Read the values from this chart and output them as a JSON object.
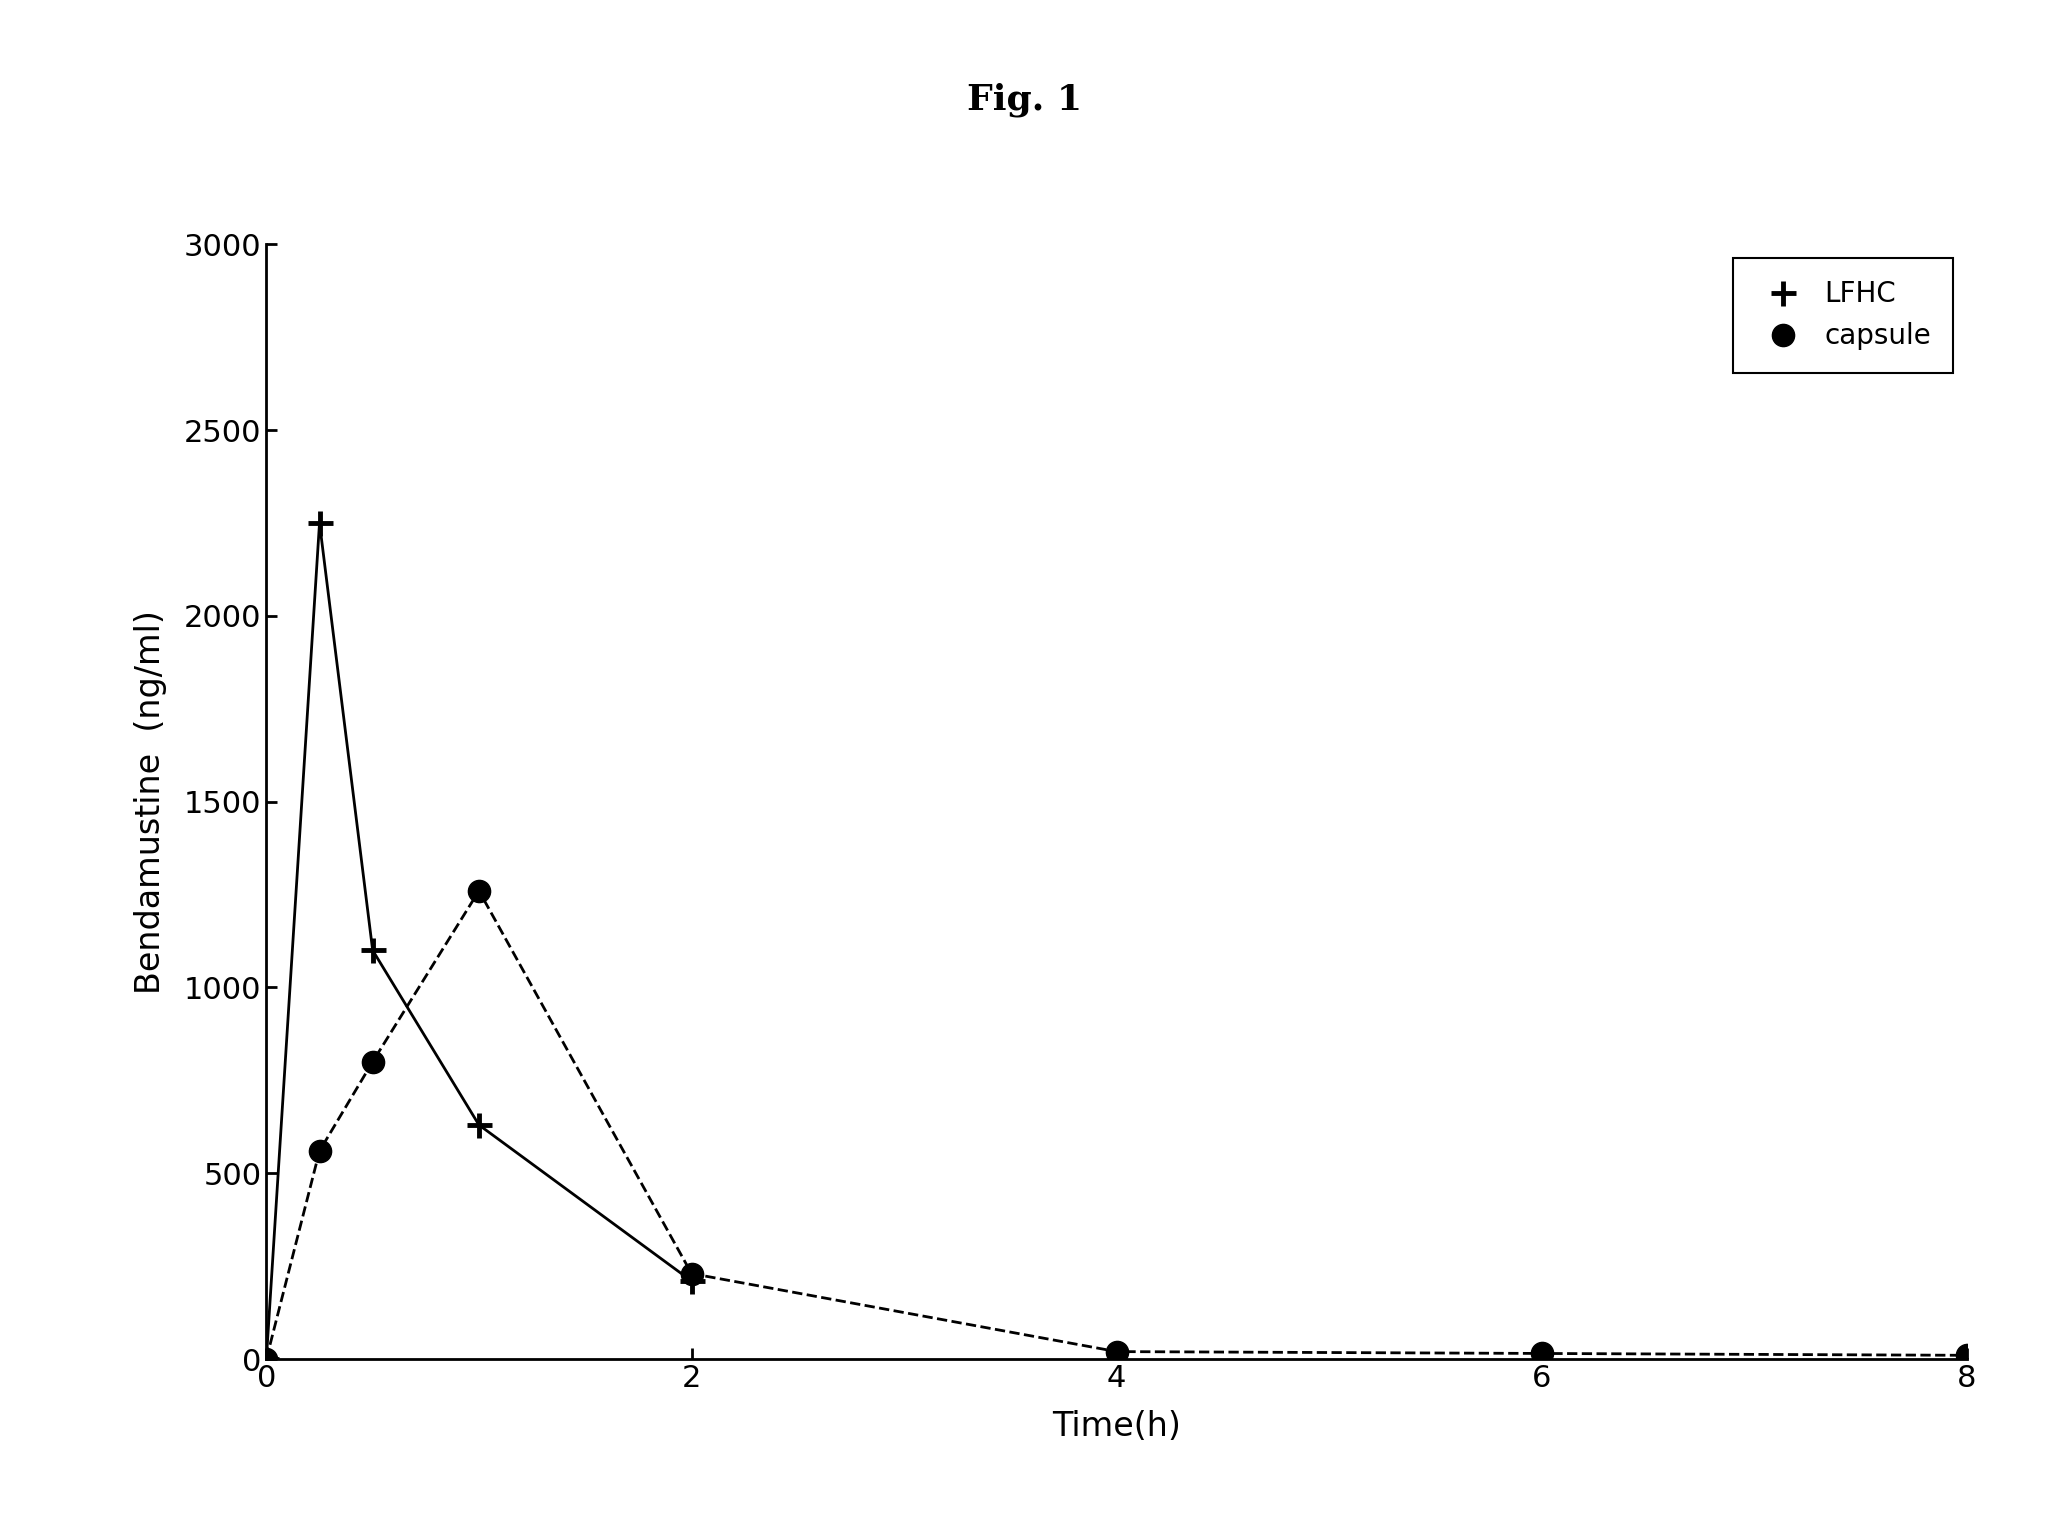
{
  "title": "Fig. 1",
  "xlabel": "Time(h)",
  "ylabel": "Bendamustine  (ng/ml)",
  "xlim": [
    0,
    8
  ],
  "ylim": [
    0,
    3000
  ],
  "xticks": [
    0,
    2,
    4,
    6,
    8
  ],
  "yticks": [
    0,
    500,
    1000,
    1500,
    2000,
    2500,
    3000
  ],
  "lfhc_x": [
    0,
    0.25,
    0.5,
    1.0,
    2.0
  ],
  "lfhc_y": [
    0,
    2250,
    1100,
    630,
    210
  ],
  "capsule_x": [
    0,
    0.25,
    0.5,
    1.0,
    2.0,
    4.0,
    6.0,
    8.0
  ],
  "capsule_y": [
    0,
    560,
    800,
    1260,
    230,
    20,
    15,
    10
  ],
  "line_color": "#000000",
  "background_color": "#ffffff",
  "title_fontsize": 26,
  "axis_fontsize": 24,
  "tick_fontsize": 22,
  "legend_fontsize": 20
}
